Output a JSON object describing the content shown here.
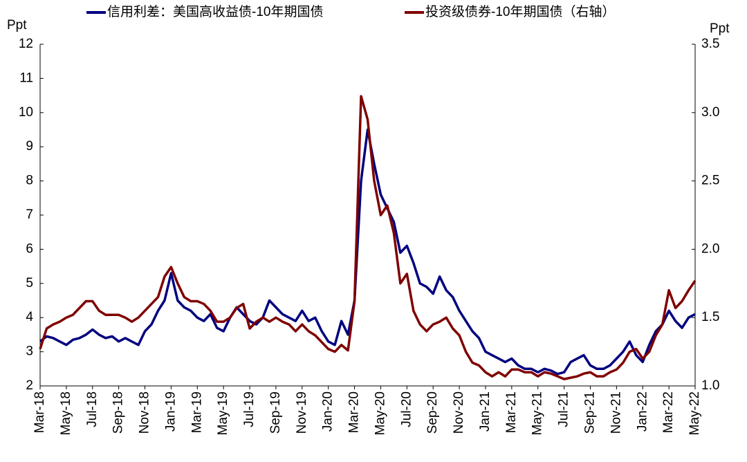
{
  "chart_data": {
    "type": "line",
    "y_label": "Ppt",
    "y2_label": "Ppt",
    "categories": [
      "Mar-18",
      null,
      null,
      null,
      "May-18",
      null,
      null,
      null,
      "Jul-18",
      null,
      null,
      null,
      "Sep-18",
      null,
      null,
      null,
      "Nov-18",
      null,
      null,
      null,
      "Jan-19",
      null,
      null,
      null,
      "Mar-19",
      null,
      null,
      null,
      "May-19",
      null,
      null,
      null,
      "Jul-19",
      null,
      null,
      null,
      "Sep-19",
      null,
      null,
      null,
      "Nov-19",
      null,
      null,
      null,
      "Jan-20",
      null,
      null,
      null,
      "Mar-20",
      null,
      null,
      null,
      "May-20",
      null,
      null,
      null,
      "Jul-20",
      null,
      null,
      null,
      "Sep-20",
      null,
      null,
      null,
      "Nov-20",
      null,
      null,
      null,
      "Jan-21",
      null,
      null,
      null,
      "Mar-21",
      null,
      null,
      null,
      "May-21",
      null,
      null,
      null,
      "Jul-21",
      null,
      null,
      null,
      "Sep-21",
      null,
      null,
      null,
      "Nov-21",
      null,
      null,
      null,
      "Jan-22",
      null,
      null,
      null,
      "Mar-22",
      null,
      null,
      null,
      "May-22"
    ],
    "ylim": [
      2,
      12
    ],
    "yticks": [
      2,
      3,
      4,
      5,
      6,
      7,
      8,
      9,
      10,
      11,
      12
    ],
    "y2lim": [
      1.0,
      3.5
    ],
    "y2ticks": [
      {
        "value": 1.0,
        "label": "1.0"
      },
      {
        "value": 1.5,
        "label": "1.5"
      },
      {
        "value": 2.0,
        "label": "2.0"
      },
      {
        "value": 2.5,
        "label": "2.5"
      },
      {
        "value": 3.0,
        "label": "3.0"
      },
      {
        "value": 3.5,
        "label": "3.5"
      }
    ],
    "legend": "top",
    "series": [
      {
        "name": "信用利差：美国高收益债-10年期国债",
        "color": "#00007f",
        "axis": "y",
        "values": [
          3.3,
          3.45,
          3.4,
          3.3,
          3.2,
          3.35,
          3.4,
          3.5,
          3.65,
          3.5,
          3.4,
          3.45,
          3.3,
          3.4,
          3.3,
          3.2,
          3.6,
          3.8,
          4.2,
          4.5,
          5.3,
          4.5,
          4.3,
          4.2,
          4.0,
          3.9,
          4.1,
          3.7,
          3.6,
          4.0,
          4.3,
          4.1,
          3.9,
          3.8,
          4.0,
          4.5,
          4.3,
          4.1,
          4.0,
          3.9,
          4.2,
          3.9,
          4.0,
          3.6,
          3.3,
          3.2,
          3.9,
          3.5,
          4.5,
          8.0,
          9.5,
          8.5,
          7.6,
          7.2,
          6.8,
          5.9,
          6.1,
          5.6,
          5.0,
          4.9,
          4.7,
          5.2,
          4.8,
          4.6,
          4.2,
          3.9,
          3.6,
          3.4,
          3.0,
          2.9,
          2.8,
          2.7,
          2.8,
          2.6,
          2.5,
          2.5,
          2.4,
          2.5,
          2.45,
          2.35,
          2.4,
          2.7,
          2.8,
          2.9,
          2.6,
          2.5,
          2.5,
          2.6,
          2.8,
          3.0,
          3.3,
          2.9,
          2.7,
          3.2,
          3.6,
          3.8,
          4.2,
          3.9,
          3.7,
          4.0,
          4.1
        ]
      },
      {
        "name": "投资级债券-10年期国债（右轴）",
        "color": "#7f0000",
        "axis": "y2",
        "values": [
          1.27,
          1.42,
          1.45,
          1.47,
          1.5,
          1.52,
          1.57,
          1.62,
          1.62,
          1.55,
          1.52,
          1.52,
          1.52,
          1.5,
          1.47,
          1.5,
          1.55,
          1.6,
          1.65,
          1.8,
          1.87,
          1.75,
          1.65,
          1.62,
          1.62,
          1.6,
          1.55,
          1.47,
          1.47,
          1.5,
          1.57,
          1.6,
          1.42,
          1.47,
          1.5,
          1.47,
          1.5,
          1.47,
          1.45,
          1.4,
          1.45,
          1.4,
          1.37,
          1.32,
          1.27,
          1.25,
          1.3,
          1.26,
          1.62,
          3.12,
          2.95,
          2.5,
          2.25,
          2.32,
          2.12,
          1.75,
          1.82,
          1.55,
          1.45,
          1.4,
          1.45,
          1.47,
          1.5,
          1.42,
          1.37,
          1.25,
          1.17,
          1.15,
          1.1,
          1.07,
          1.1,
          1.07,
          1.12,
          1.12,
          1.1,
          1.1,
          1.07,
          1.1,
          1.09,
          1.07,
          1.05,
          1.06,
          1.07,
          1.09,
          1.1,
          1.07,
          1.07,
          1.1,
          1.12,
          1.17,
          1.25,
          1.27,
          1.2,
          1.25,
          1.37,
          1.45,
          1.7,
          1.57,
          1.62,
          1.7,
          1.77
        ]
      }
    ]
  }
}
